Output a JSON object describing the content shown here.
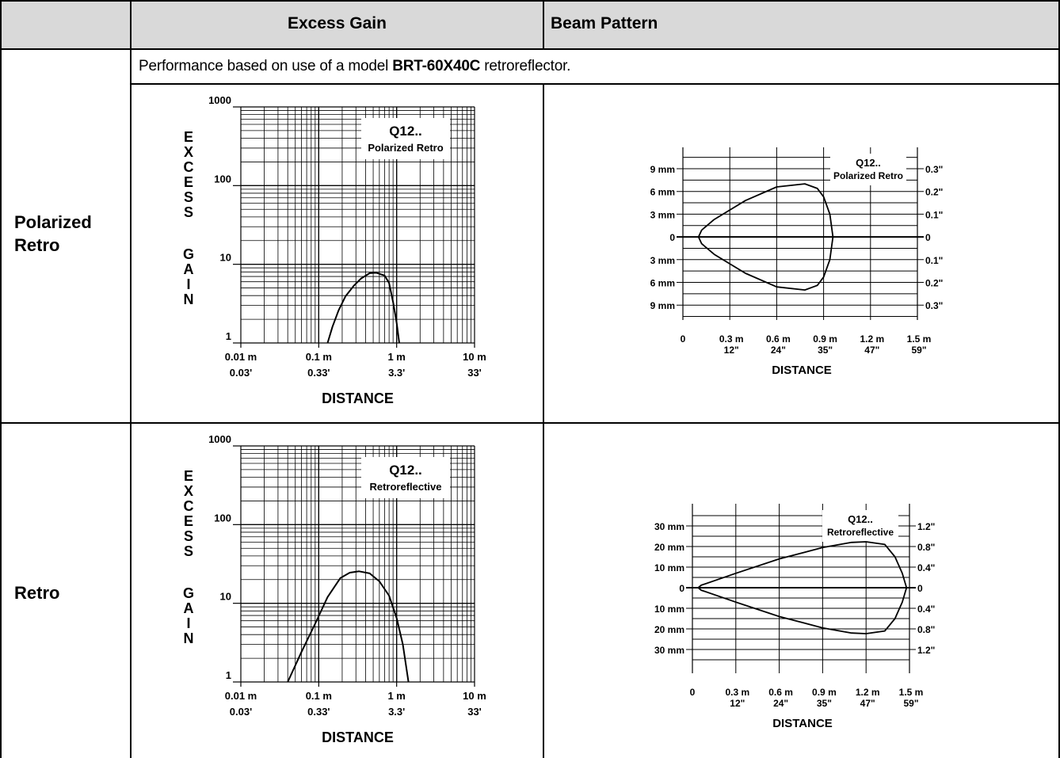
{
  "header": {
    "col_gain": "Excess Gain",
    "col_beam": "Beam Pattern"
  },
  "note": {
    "prefix": "Performance based on use of a model ",
    "model": "BRT-60X40C",
    "suffix": " retroreflector."
  },
  "rows": [
    {
      "line1": "Polarized",
      "line2": "Retro"
    },
    {
      "line1": "Retro",
      "line2": ""
    }
  ],
  "chart_data": [
    {
      "type": "line",
      "chart_kind": "excess-gain",
      "title": "Q12..",
      "subtitle": "Polarized Retro",
      "ylabel": "EXCESS GAIN",
      "xlabel": "DISTANCE",
      "x_scale": "log",
      "y_scale": "log",
      "xlim_m": [
        0.01,
        10
      ],
      "ylim": [
        1,
        1000
      ],
      "x_ticks_metric": [
        "0.01 m",
        "0.1 m",
        "1 m",
        "10 m"
      ],
      "x_ticks_imperial": [
        "0.03'",
        "0.33'",
        "3.3'",
        "33'"
      ],
      "y_ticks": [
        "1000",
        "100",
        "10",
        "1"
      ],
      "grid": true,
      "series": [
        {
          "x": [
            0.13,
            0.15,
            0.18,
            0.22,
            0.28,
            0.35,
            0.45,
            0.55,
            0.7,
            0.8,
            0.9,
            1.0,
            1.08
          ],
          "y": [
            1,
            1.6,
            2.6,
            3.9,
            5.3,
            6.6,
            7.7,
            7.8,
            7.2,
            5.8,
            3.3,
            1.8,
            1
          ]
        }
      ]
    },
    {
      "type": "line",
      "chart_kind": "beam-pattern",
      "title": "Q12..",
      "subtitle": "Polarized Retro",
      "xlabel": "DISTANCE",
      "xlim_m": [
        0,
        1.5
      ],
      "ylim_mm": [
        -10.5,
        10.5
      ],
      "x_ticks_metric": [
        "0",
        "0.3 m",
        "0.6 m",
        "0.9 m",
        "1.2 m",
        "1.5 m"
      ],
      "x_ticks_imperial": [
        "",
        "12\"",
        "24\"",
        "35\"",
        "47\"",
        "59\""
      ],
      "y_ticks_left": [
        "9 mm",
        "6 mm",
        "3 mm",
        "0",
        "3 mm",
        "6 mm",
        "9 mm"
      ],
      "y_ticks_right": [
        "0.3\"",
        "0.2\"",
        "0.1\"",
        "0",
        "0.1\"",
        "0.2\"",
        "0.3\""
      ],
      "y_values_mm": [
        9,
        6,
        3,
        0,
        -3,
        -6,
        -9
      ],
      "grid": true,
      "series": [
        {
          "x": [
            0.1,
            0.12,
            0.2,
            0.4,
            0.6,
            0.78,
            0.86,
            0.9,
            0.94,
            0.96,
            0.94,
            0.9,
            0.86,
            0.78,
            0.6,
            0.4,
            0.2,
            0.12,
            0.1
          ],
          "y": [
            0,
            0.9,
            2.3,
            4.8,
            6.6,
            7.0,
            6.4,
            5.3,
            3.0,
            0,
            -3.0,
            -5.3,
            -6.4,
            -7.0,
            -6.6,
            -4.8,
            -2.3,
            -0.9,
            0
          ]
        }
      ]
    },
    {
      "type": "line",
      "chart_kind": "excess-gain",
      "title": "Q12..",
      "subtitle": "Retroreflective",
      "ylabel": "EXCESS GAIN",
      "xlabel": "DISTANCE",
      "x_scale": "log",
      "y_scale": "log",
      "xlim_m": [
        0.01,
        10
      ],
      "ylim": [
        1,
        1000
      ],
      "x_ticks_metric": [
        "0.01 m",
        "0.1 m",
        "1 m",
        "10 m"
      ],
      "x_ticks_imperial": [
        "0.03'",
        "0.33'",
        "3.3'",
        "33'"
      ],
      "y_ticks": [
        "1000",
        "100",
        "10",
        "1"
      ],
      "grid": true,
      "series": [
        {
          "x": [
            0.04,
            0.06,
            0.09,
            0.13,
            0.19,
            0.25,
            0.33,
            0.45,
            0.6,
            0.8,
            1.0,
            1.2,
            1.42
          ],
          "y": [
            1,
            2.4,
            5.5,
            12,
            21,
            24.5,
            25.5,
            24,
            19,
            12.5,
            6.5,
            3,
            1
          ]
        }
      ]
    },
    {
      "type": "line",
      "chart_kind": "beam-pattern",
      "title": "Q12..",
      "subtitle": "Retroreflective",
      "xlabel": "DISTANCE",
      "xlim_m": [
        0,
        1.5
      ],
      "ylim_mm": [
        -35,
        35
      ],
      "x_ticks_metric": [
        "0",
        "0.3 m",
        "0.6 m",
        "0.9 m",
        "1.2 m",
        "1.5 m"
      ],
      "x_ticks_imperial": [
        "",
        "12\"",
        "24\"",
        "35\"",
        "47\"",
        "59\""
      ],
      "y_ticks_left": [
        "30 mm",
        "20 mm",
        "10 mm",
        "0",
        "10 mm",
        "20 mm",
        "30 mm"
      ],
      "y_ticks_right": [
        "1.2\"",
        "0.8\"",
        "0.4\"",
        "0",
        "0.4\"",
        "0.8\"",
        "1.2\""
      ],
      "y_values_mm": [
        30,
        20,
        10,
        0,
        -10,
        -20,
        -30
      ],
      "grid": true,
      "series": [
        {
          "x": [
            0.04,
            0.06,
            0.3,
            0.6,
            0.9,
            1.1,
            1.2,
            1.33,
            1.4,
            1.45,
            1.48,
            1.45,
            1.4,
            1.33,
            1.2,
            1.1,
            0.9,
            0.6,
            0.3,
            0.06,
            0.04
          ],
          "y": [
            0,
            1.2,
            7,
            14,
            19.5,
            22,
            22.3,
            21,
            15,
            7,
            0,
            -7,
            -15,
            -21,
            -22.3,
            -22,
            -19.5,
            -14,
            -7,
            -1.2,
            0
          ]
        }
      ]
    }
  ]
}
